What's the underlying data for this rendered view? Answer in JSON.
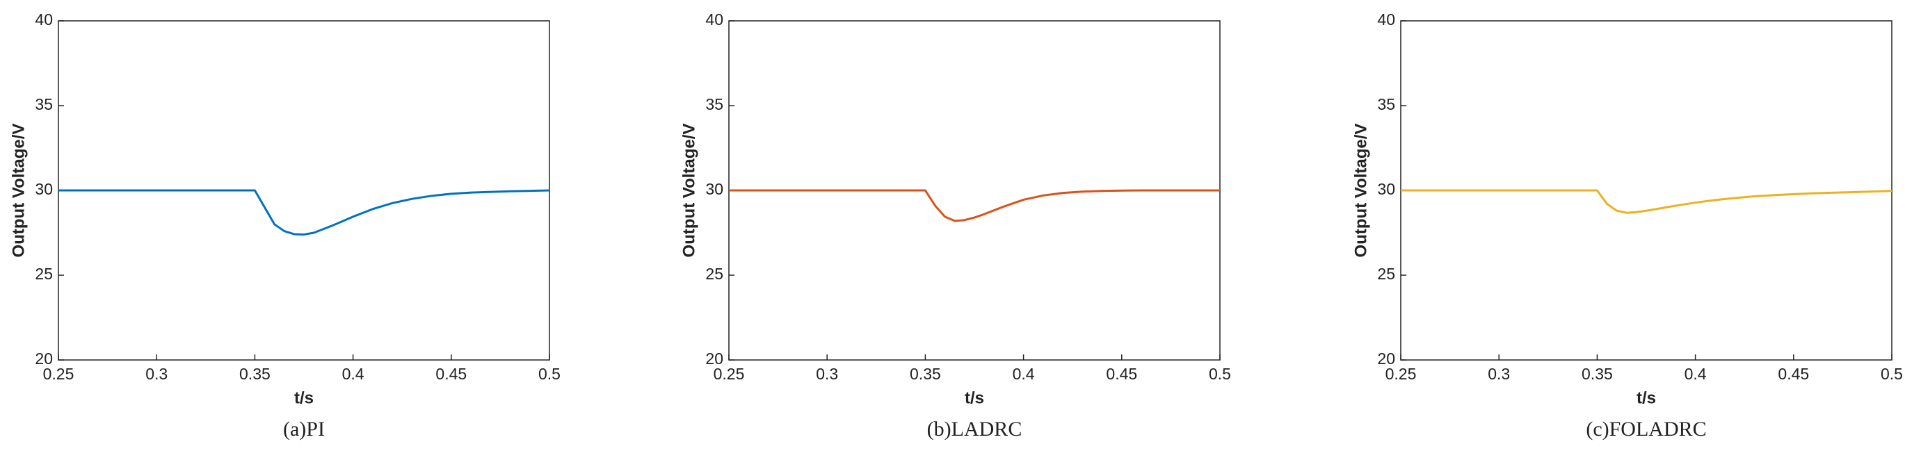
{
  "chart_data": [
    {
      "type": "line",
      "caption": "(a)PI",
      "xlabel": "t/s",
      "ylabel": "Output Voltage/V",
      "x": [
        0.25,
        0.3,
        0.35,
        0.355,
        0.36,
        0.365,
        0.37,
        0.375,
        0.38,
        0.39,
        0.4,
        0.41,
        0.42,
        0.43,
        0.44,
        0.45,
        0.46,
        0.48,
        0.5
      ],
      "series": [
        {
          "color": "#0072bd",
          "values": [
            30,
            30,
            30,
            29.0,
            28.0,
            27.6,
            27.42,
            27.4,
            27.5,
            27.95,
            28.45,
            28.9,
            29.25,
            29.5,
            29.68,
            29.8,
            29.87,
            29.95,
            30
          ]
        }
      ],
      "xlim": [
        0.25,
        0.5
      ],
      "xticks": [
        0.25,
        0.3,
        0.35,
        0.4,
        0.45,
        0.5
      ],
      "ylim": [
        20,
        40
      ],
      "yticks": [
        20,
        25,
        30,
        35,
        40
      ]
    },
    {
      "type": "line",
      "caption": "(b)LADRC",
      "xlabel": "t/s",
      "ylabel": "Output Voltage/V",
      "x": [
        0.25,
        0.3,
        0.35,
        0.355,
        0.36,
        0.365,
        0.37,
        0.375,
        0.38,
        0.39,
        0.4,
        0.41,
        0.42,
        0.43,
        0.44,
        0.45,
        0.46,
        0.48,
        0.5
      ],
      "series": [
        {
          "color": "#d95319",
          "values": [
            30,
            30,
            30,
            29.1,
            28.45,
            28.2,
            28.25,
            28.4,
            28.6,
            29.05,
            29.45,
            29.7,
            29.85,
            29.93,
            29.97,
            29.99,
            30,
            30,
            30
          ]
        }
      ],
      "xlim": [
        0.25,
        0.5
      ],
      "xticks": [
        0.25,
        0.3,
        0.35,
        0.4,
        0.45,
        0.5
      ],
      "ylim": [
        20,
        40
      ],
      "yticks": [
        20,
        25,
        30,
        35,
        40
      ]
    },
    {
      "type": "line",
      "caption": "(c)FOLADRC",
      "xlabel": "t/s",
      "ylabel": "Output Voltage/V",
      "x": [
        0.25,
        0.3,
        0.35,
        0.355,
        0.36,
        0.365,
        0.37,
        0.375,
        0.38,
        0.39,
        0.4,
        0.41,
        0.42,
        0.43,
        0.44,
        0.45,
        0.46,
        0.48,
        0.5
      ],
      "series": [
        {
          "color": "#edb120",
          "values": [
            30,
            30,
            30,
            29.2,
            28.8,
            28.68,
            28.72,
            28.8,
            28.9,
            29.1,
            29.28,
            29.43,
            29.55,
            29.65,
            29.72,
            29.78,
            29.83,
            29.9,
            29.97
          ]
        }
      ],
      "xlim": [
        0.25,
        0.5
      ],
      "xticks": [
        0.25,
        0.3,
        0.35,
        0.4,
        0.45,
        0.5
      ],
      "ylim": [
        20,
        40
      ],
      "yticks": [
        20,
        25,
        30,
        35,
        40
      ]
    }
  ]
}
